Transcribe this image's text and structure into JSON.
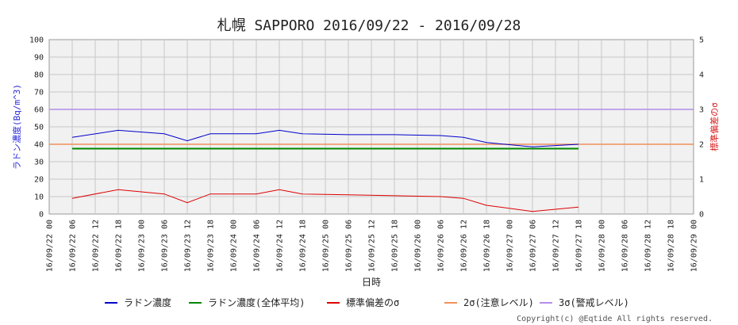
{
  "chart_data": {
    "type": "line",
    "title": "札幌 SAPPORO 2016/09/22 - 2016/09/28",
    "xlabel": "日時",
    "ylabel_left": "ラドン濃度(Bq/m^3)",
    "ylabel_right": "標準偏差のσ",
    "ylim_left": [
      0,
      100
    ],
    "ylim_right": [
      0,
      5
    ],
    "y_ticks_left": [
      "0",
      "10",
      "20",
      "30",
      "40",
      "50",
      "60",
      "70",
      "80",
      "90",
      "100"
    ],
    "y_ticks_right": [
      "0",
      "1",
      "2",
      "3",
      "4",
      "5"
    ],
    "x_ticks": [
      "16/09/22 00",
      "16/09/22 06",
      "16/09/22 12",
      "16/09/22 18",
      "16/09/23 00",
      "16/09/23 06",
      "16/09/23 12",
      "16/09/23 18",
      "16/09/24 00",
      "16/09/24 06",
      "16/09/24 12",
      "16/09/24 18",
      "16/09/25 00",
      "16/09/25 06",
      "16/09/25 12",
      "16/09/25 18",
      "16/09/26 00",
      "16/09/26 06",
      "16/09/26 12",
      "16/09/26 18",
      "16/09/27 00",
      "16/09/27 06",
      "16/09/27 12",
      "16/09/27 18",
      "16/09/28 00",
      "16/09/28 06",
      "16/09/28 12",
      "16/09/28 18",
      "16/09/29 00"
    ],
    "grid": true,
    "legend_position": "bottom",
    "series": [
      {
        "name": "ラドン濃度",
        "color": "#0000cc",
        "x": [
          "16/09/22 06",
          "16/09/22 18",
          "16/09/23 06",
          "16/09/23 12",
          "16/09/23 18",
          "16/09/24 06",
          "16/09/24 12",
          "16/09/24 18",
          "16/09/25 06",
          "16/09/25 18",
          "16/09/26 06",
          "16/09/26 12",
          "16/09/26 18",
          "16/09/27 06",
          "16/09/27 18"
        ],
        "values": [
          44,
          48,
          46,
          42,
          46,
          46,
          48,
          46,
          45.5,
          45.5,
          45,
          44,
          41,
          38.5,
          40
        ]
      },
      {
        "name": "ラドン濃度(全体平均)",
        "color": "#008800",
        "x": [
          "16/09/22 06",
          "16/09/27 18"
        ],
        "values": [
          37.5,
          37.5
        ]
      },
      {
        "name": "標準偏差のσ",
        "color": "#dd0000",
        "x": [
          "16/09/22 06",
          "16/09/22 18",
          "16/09/23 06",
          "16/09/23 12",
          "16/09/23 18",
          "16/09/24 06",
          "16/09/24 12",
          "16/09/24 18",
          "16/09/25 06",
          "16/09/25 18",
          "16/09/26 06",
          "16/09/26 12",
          "16/09/26 18",
          "16/09/27 06",
          "16/09/27 18"
        ],
        "values": [
          9,
          14,
          11.5,
          6.5,
          11.5,
          11.5,
          14,
          11.5,
          11,
          10.5,
          10,
          9,
          5,
          1.5,
          4
        ]
      },
      {
        "name": "2σ(注意レベル)",
        "color": "#f0905a",
        "x": [
          "16/09/22 00",
          "16/09/29 00"
        ],
        "values": [
          40,
          40
        ]
      },
      {
        "name": "3σ(警戒レベル)",
        "color": "#b48ee8",
        "x": [
          "16/09/22 00",
          "16/09/29 00"
        ],
        "values": [
          60,
          60
        ]
      }
    ]
  },
  "copyright": "Copyright(c) @Eqtide All rights reserved."
}
